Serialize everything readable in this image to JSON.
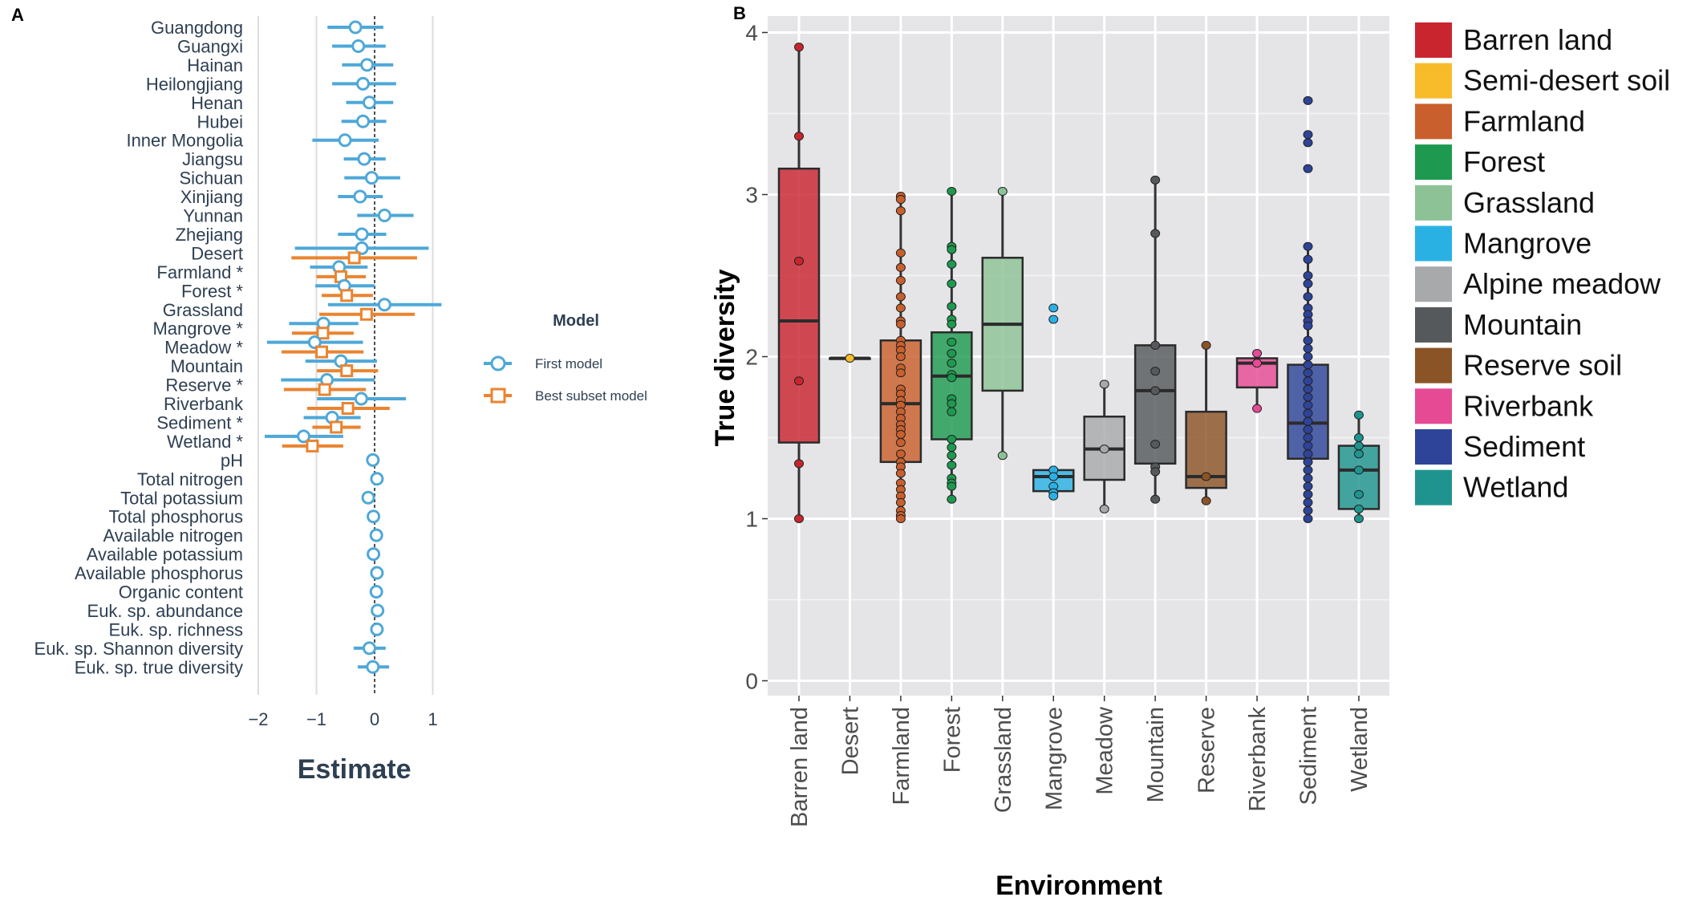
{
  "chart_data": [
    {
      "panel_label": "A",
      "type": "forest-plot",
      "xlabel": "Estimate",
      "xlim": [
        -2.2,
        1.2
      ],
      "xticks": [
        -2,
        -1,
        0,
        1
      ],
      "xtick_labels": [
        "−2",
        "−1",
        "0",
        "1"
      ],
      "reference_line": 0,
      "legend": {
        "title": "Model",
        "position": "right",
        "entries": [
          "First model",
          "Best subset model"
        ]
      },
      "colors": {
        "First model": "#4ea8d8",
        "Best subset model": "#ea8430",
        "text": "#2e3f52"
      },
      "rows": [
        {
          "label": "Guangdong",
          "first": [
            -0.33,
            -0.81,
            0.15
          ]
        },
        {
          "label": "Guangxi",
          "first": [
            -0.28,
            -0.73,
            0.19
          ]
        },
        {
          "label": "Hainan",
          "first": [
            -0.13,
            -0.56,
            0.32
          ]
        },
        {
          "label": "Heilongjiang",
          "first": [
            -0.2,
            -0.73,
            0.37
          ]
        },
        {
          "label": "Henan",
          "first": [
            -0.09,
            -0.49,
            0.32
          ]
        },
        {
          "label": "Hubei",
          "first": [
            -0.2,
            -0.57,
            0.2
          ]
        },
        {
          "label": "Inner Mongolia",
          "first": [
            -0.51,
            -1.07,
            0.07
          ]
        },
        {
          "label": "Jiangsu",
          "first": [
            -0.18,
            -0.53,
            0.19
          ]
        },
        {
          "label": "Sichuan",
          "first": [
            -0.05,
            -0.52,
            0.44
          ]
        },
        {
          "label": "Xinjiang",
          "first": [
            -0.25,
            -0.63,
            0.14
          ]
        },
        {
          "label": "Yunnan",
          "first": [
            0.17,
            -0.3,
            0.67
          ]
        },
        {
          "label": "Zhejiang",
          "first": [
            -0.22,
            -0.63,
            0.2
          ]
        },
        {
          "label": "Desert",
          "first": [
            -0.22,
            -1.37,
            0.93
          ],
          "best": [
            -0.35,
            -1.43,
            0.73
          ]
        },
        {
          "label": "Farmland *",
          "first": [
            -0.61,
            -1.11,
            -0.12
          ],
          "best": [
            -0.58,
            -1.0,
            -0.15
          ]
        },
        {
          "label": "Forest *",
          "first": [
            -0.52,
            -1.02,
            0.0
          ],
          "best": [
            -0.48,
            -0.91,
            -0.03
          ]
        },
        {
          "label": "Grassland",
          "first": [
            0.17,
            -0.8,
            1.15
          ],
          "best": [
            -0.14,
            -0.95,
            0.69
          ]
        },
        {
          "label": "Mangrove *",
          "first": [
            -0.88,
            -1.47,
            -0.28
          ],
          "best": [
            -0.89,
            -1.42,
            -0.36
          ]
        },
        {
          "label": "Meadow *",
          "first": [
            -1.03,
            -1.85,
            -0.2
          ],
          "best": [
            -0.91,
            -1.6,
            -0.19
          ]
        },
        {
          "label": "Mountain",
          "first": [
            -0.58,
            -1.19,
            0.04
          ],
          "best": [
            -0.48,
            -0.99,
            0.06
          ]
        },
        {
          "label": "Reserve *",
          "first": [
            -0.82,
            -1.61,
            0.0
          ],
          "best": [
            -0.86,
            -1.56,
            -0.15
          ]
        },
        {
          "label": "Riverbank",
          "first": [
            -0.23,
            -0.99,
            0.54
          ],
          "best": [
            -0.46,
            -1.16,
            0.26
          ]
        },
        {
          "label": "Sediment *",
          "first": [
            -0.73,
            -1.22,
            -0.24
          ],
          "best": [
            -0.66,
            -1.07,
            -0.24
          ]
        },
        {
          "label": "Wetland *",
          "first": [
            -1.22,
            -1.89,
            -0.54
          ],
          "best": [
            -1.07,
            -1.59,
            -0.54
          ]
        },
        {
          "label": "pH",
          "first": [
            -0.03,
            -0.04,
            -0.02
          ]
        },
        {
          "label": "Total nitrogen",
          "first": [
            0.04,
            0.03,
            0.05
          ]
        },
        {
          "label": "Total potassium",
          "first": [
            -0.11,
            -0.12,
            -0.1
          ]
        },
        {
          "label": "Total phosphorus",
          "first": [
            -0.02,
            -0.03,
            -0.01
          ]
        },
        {
          "label": "Available nitrogen",
          "first": [
            0.03,
            0.02,
            0.04
          ]
        },
        {
          "label": "Available potassium",
          "first": [
            -0.02,
            -0.03,
            -0.01
          ]
        },
        {
          "label": "Available phosphorus",
          "first": [
            0.04,
            0.03,
            0.05
          ]
        },
        {
          "label": "Organic content",
          "first": [
            0.03,
            0.02,
            0.04
          ]
        },
        {
          "label": "Euk. sp. abundance",
          "first": [
            0.05,
            0.04,
            0.06
          ]
        },
        {
          "label": "Euk. sp. richness",
          "first": [
            0.04,
            0.03,
            0.05
          ]
        },
        {
          "label": "Euk. sp. Shannon diversity",
          "first": [
            -0.09,
            -0.36,
            0.19
          ]
        },
        {
          "label": "Euk. sp. true diversity",
          "first": [
            -0.03,
            -0.29,
            0.25
          ]
        }
      ]
    },
    {
      "panel_label": "B",
      "type": "box",
      "xlabel": "Environment",
      "ylabel": "True diversity",
      "ylim": [
        0,
        4
      ],
      "yticks": [
        0,
        1,
        2,
        3,
        4
      ],
      "grid": true,
      "legend": {
        "position": "right"
      },
      "groups": [
        {
          "category": "Barren land",
          "legend": "Barren land",
          "color": "#c9252f",
          "q1": 1.47,
          "median": 2.22,
          "q3": 3.16,
          "whisker_low": 1.0,
          "whisker_high": 3.91,
          "points": [
            3.91,
            3.36,
            2.59,
            1.85,
            1.34,
            1.0
          ]
        },
        {
          "category": "Desert",
          "legend": "Semi-desert soil",
          "color": "#f8bc2b",
          "q1": 1.99,
          "median": 1.99,
          "q3": 1.99,
          "whisker_low": 1.99,
          "whisker_high": 1.99,
          "points": [
            1.99
          ]
        },
        {
          "category": "Farmland",
          "legend": "Farmland",
          "color": "#c95f2c",
          "q1": 1.35,
          "median": 1.71,
          "q3": 2.1,
          "whisker_low": 1.0,
          "whisker_high": 2.99,
          "points": [
            2.99,
            2.97,
            2.9,
            2.64,
            2.55,
            2.47,
            2.37,
            2.3,
            2.22,
            2.2,
            2.1,
            2.07,
            2.04,
            2.0,
            1.93,
            1.9,
            1.8,
            1.77,
            1.73,
            1.7,
            1.66,
            1.62,
            1.58,
            1.55,
            1.52,
            1.47,
            1.4,
            1.35,
            1.32,
            1.28,
            1.22,
            1.18,
            1.14,
            1.1,
            1.05,
            1.02,
            1.0
          ]
        },
        {
          "category": "Forest",
          "legend": "Forest",
          "color": "#1d9a4f",
          "q1": 1.49,
          "median": 1.88,
          "q3": 2.15,
          "whisker_low": 1.12,
          "whisker_high": 3.02,
          "points": [
            3.02,
            2.68,
            2.66,
            2.57,
            2.45,
            2.31,
            2.23,
            2.2,
            2.09,
            2.02,
            1.96,
            1.89,
            1.87,
            1.74,
            1.71,
            1.66,
            1.49,
            1.44,
            1.39,
            1.33,
            1.25,
            1.22,
            1.2,
            1.12
          ]
        },
        {
          "category": "Grassland",
          "legend": "Grassland",
          "color": "#8cc296",
          "q1": 1.79,
          "median": 2.2,
          "q3": 2.61,
          "whisker_low": 1.39,
          "whisker_high": 3.02,
          "points": [
            3.02,
            1.39
          ]
        },
        {
          "category": "Mangrove",
          "legend": "Mangrove",
          "color": "#2ab1e4",
          "q1": 1.17,
          "median": 1.26,
          "q3": 1.3,
          "whisker_low": 1.14,
          "whisker_high": 1.3,
          "points": [
            2.3,
            2.23,
            1.3,
            1.26,
            1.2,
            1.16,
            1.14
          ]
        },
        {
          "category": "Meadow",
          "legend": "Alpine meadow",
          "color": "#a7a9ab",
          "q1": 1.24,
          "median": 1.43,
          "q3": 1.63,
          "whisker_low": 1.06,
          "whisker_high": 1.83,
          "points": [
            1.83,
            1.43,
            1.06
          ]
        },
        {
          "category": "Mountain",
          "legend": "Mountain",
          "color": "#56595c",
          "q1": 1.34,
          "median": 1.79,
          "q3": 2.07,
          "whisker_low": 1.12,
          "whisker_high": 3.09,
          "points": [
            3.09,
            2.76,
            2.07,
            1.91,
            1.79,
            1.46,
            1.32,
            1.29,
            1.12
          ]
        },
        {
          "category": "Reserve",
          "legend": "Reserve soil",
          "color": "#8b5427",
          "q1": 1.19,
          "median": 1.26,
          "q3": 1.66,
          "whisker_low": 1.11,
          "whisker_high": 2.07,
          "points": [
            2.07,
            1.26,
            1.11
          ]
        },
        {
          "category": "Riverbank",
          "legend": "Riverbank",
          "color": "#e64a95",
          "q1": 1.81,
          "median": 1.96,
          "q3": 1.99,
          "whisker_low": 1.68,
          "whisker_high": 1.99,
          "points": [
            2.02,
            1.96,
            1.68
          ]
        },
        {
          "category": "Sediment",
          "legend": "Sediment",
          "color": "#2e4499",
          "q1": 1.37,
          "median": 1.59,
          "q3": 1.95,
          "whisker_low": 1.0,
          "whisker_high": 2.68,
          "points": [
            3.58,
            3.37,
            3.32,
            3.16,
            2.68,
            2.6,
            2.5,
            2.45,
            2.37,
            2.3,
            2.26,
            2.22,
            2.19,
            2.1,
            2.05,
            2.0,
            1.95,
            1.9,
            1.85,
            1.8,
            1.75,
            1.7,
            1.65,
            1.6,
            1.55,
            1.5,
            1.45,
            1.4,
            1.35,
            1.3,
            1.25,
            1.2,
            1.15,
            1.1,
            1.05,
            1.0
          ]
        },
        {
          "category": "Wetland",
          "legend": "Wetland",
          "color": "#1f948e",
          "q1": 1.06,
          "median": 1.3,
          "q3": 1.45,
          "whisker_low": 1.0,
          "whisker_high": 1.64,
          "points": [
            1.64,
            1.5,
            1.45,
            1.4,
            1.3,
            1.15,
            1.06,
            1.0
          ]
        }
      ]
    }
  ]
}
